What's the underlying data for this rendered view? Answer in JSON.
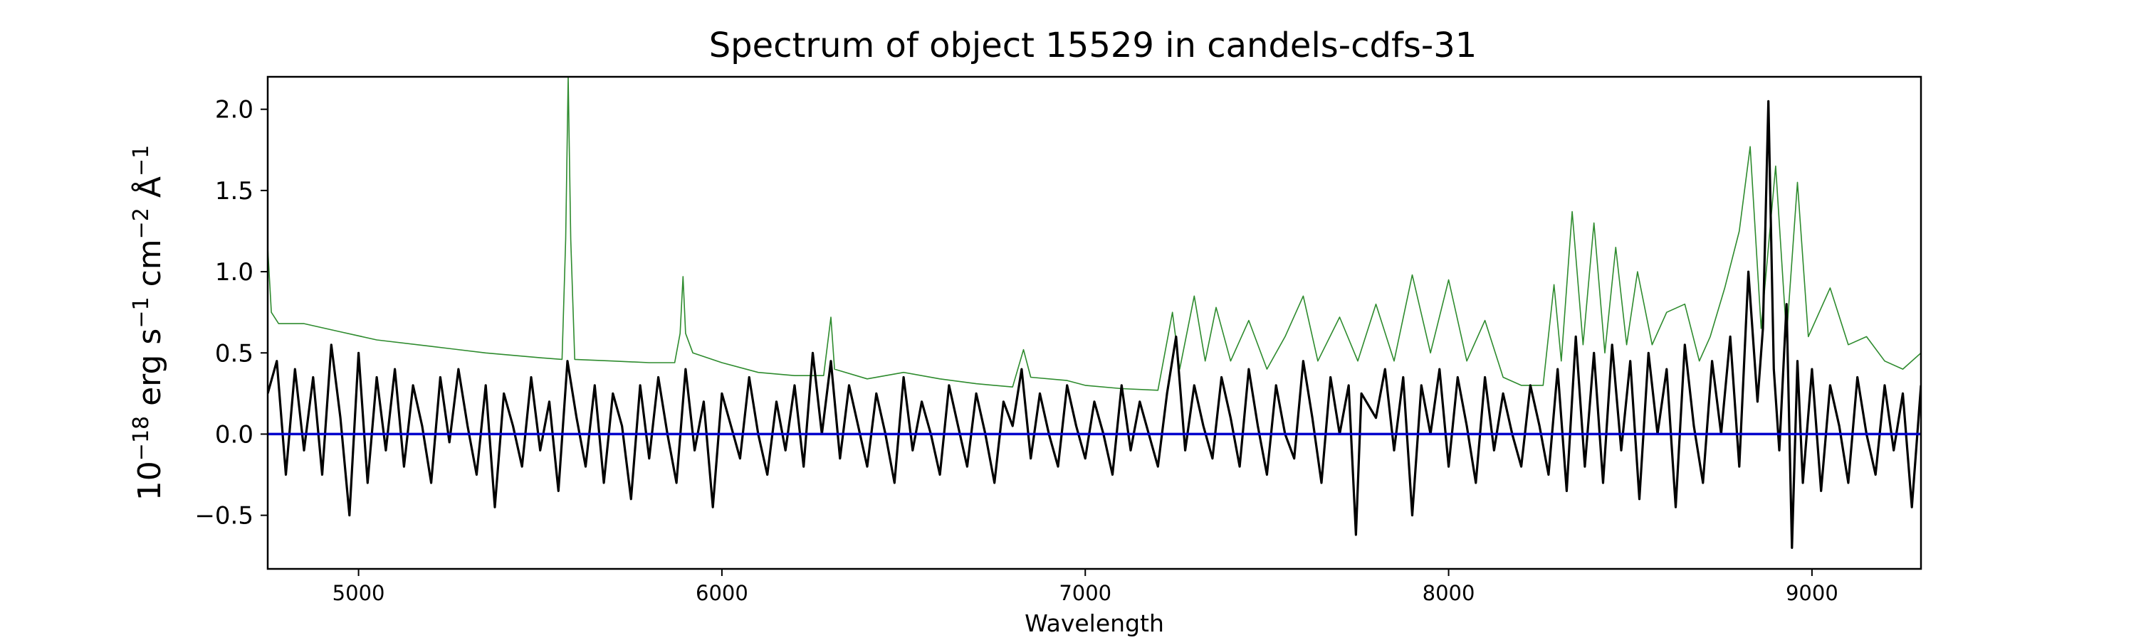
{
  "chart_data": {
    "type": "line",
    "title": "Spectrum of object 15529 in candels-cdfs-31",
    "xlabel": "Wavelength",
    "ylabel_parts": {
      "base": "10",
      "base_exp": "−18",
      "erg": " erg s",
      "s_exp": "−1",
      "cm": " cm",
      "cm_exp": "−2",
      "ang": " Å",
      "ang_exp": "−1"
    },
    "xlim": [
      4750,
      9300
    ],
    "ylim": [
      -0.83,
      2.2
    ],
    "x_ticks": [
      {
        "value": 5000,
        "label": "5000"
      },
      {
        "value": 6000,
        "label": "6000"
      },
      {
        "value": 7000,
        "label": "7000"
      },
      {
        "value": 8000,
        "label": "8000"
      },
      {
        "value": 9000,
        "label": "9000"
      }
    ],
    "y_ticks": [
      {
        "value": -0.5,
        "label": "−0.5"
      },
      {
        "value": 0.0,
        "label": "0.0"
      },
      {
        "value": 0.5,
        "label": "0.5"
      },
      {
        "value": 1.0,
        "label": "1.0"
      },
      {
        "value": 1.5,
        "label": "1.5"
      },
      {
        "value": 2.0,
        "label": "2.0"
      }
    ],
    "grid": false,
    "legend": "none",
    "series": [
      {
        "color": "#2e8b2e",
        "role": "error",
        "points": [
          [
            4750,
            1.15
          ],
          [
            4760,
            0.75
          ],
          [
            4780,
            0.68
          ],
          [
            4850,
            0.68
          ],
          [
            4950,
            0.63
          ],
          [
            5050,
            0.58
          ],
          [
            5200,
            0.54
          ],
          [
            5350,
            0.5
          ],
          [
            5500,
            0.47
          ],
          [
            5560,
            0.46
          ],
          [
            5570,
            1.2
          ],
          [
            5577,
            2.2
          ],
          [
            5584,
            1.2
          ],
          [
            5595,
            0.46
          ],
          [
            5700,
            0.45
          ],
          [
            5800,
            0.44
          ],
          [
            5870,
            0.44
          ],
          [
            5885,
            0.62
          ],
          [
            5893,
            0.97
          ],
          [
            5900,
            0.62
          ],
          [
            5920,
            0.5
          ],
          [
            6000,
            0.44
          ],
          [
            6100,
            0.38
          ],
          [
            6200,
            0.36
          ],
          [
            6280,
            0.36
          ],
          [
            6300,
            0.72
          ],
          [
            6310,
            0.4
          ],
          [
            6400,
            0.34
          ],
          [
            6500,
            0.38
          ],
          [
            6600,
            0.34
          ],
          [
            6700,
            0.31
          ],
          [
            6800,
            0.29
          ],
          [
            6830,
            0.52
          ],
          [
            6850,
            0.35
          ],
          [
            6950,
            0.33
          ],
          [
            7000,
            0.3
          ],
          [
            7100,
            0.28
          ],
          [
            7200,
            0.27
          ],
          [
            7240,
            0.75
          ],
          [
            7260,
            0.4
          ],
          [
            7300,
            0.85
          ],
          [
            7330,
            0.45
          ],
          [
            7360,
            0.78
          ],
          [
            7400,
            0.45
          ],
          [
            7450,
            0.7
          ],
          [
            7500,
            0.4
          ],
          [
            7550,
            0.6
          ],
          [
            7600,
            0.85
          ],
          [
            7640,
            0.45
          ],
          [
            7700,
            0.72
          ],
          [
            7750,
            0.45
          ],
          [
            7800,
            0.8
          ],
          [
            7850,
            0.45
          ],
          [
            7900,
            0.98
          ],
          [
            7950,
            0.5
          ],
          [
            8000,
            0.95
          ],
          [
            8050,
            0.45
          ],
          [
            8100,
            0.7
          ],
          [
            8150,
            0.35
          ],
          [
            8200,
            0.3
          ],
          [
            8260,
            0.3
          ],
          [
            8290,
            0.92
          ],
          [
            8310,
            0.45
          ],
          [
            8340,
            1.37
          ],
          [
            8370,
            0.55
          ],
          [
            8400,
            1.3
          ],
          [
            8430,
            0.5
          ],
          [
            8460,
            1.15
          ],
          [
            8490,
            0.55
          ],
          [
            8520,
            1.0
          ],
          [
            8560,
            0.55
          ],
          [
            8600,
            0.75
          ],
          [
            8650,
            0.8
          ],
          [
            8690,
            0.45
          ],
          [
            8720,
            0.6
          ],
          [
            8760,
            0.9
          ],
          [
            8800,
            1.25
          ],
          [
            8830,
            1.77
          ],
          [
            8860,
            0.65
          ],
          [
            8900,
            1.65
          ],
          [
            8930,
            0.6
          ],
          [
            8960,
            1.55
          ],
          [
            8990,
            0.6
          ],
          [
            9050,
            0.9
          ],
          [
            9100,
            0.55
          ],
          [
            9150,
            0.6
          ],
          [
            9200,
            0.45
          ],
          [
            9250,
            0.4
          ],
          [
            9300,
            0.5
          ]
        ]
      },
      {
        "color": "#000000",
        "role": "flux",
        "points": [
          [
            4750,
            0.25
          ],
          [
            4775,
            0.45
          ],
          [
            4800,
            -0.25
          ],
          [
            4825,
            0.4
          ],
          [
            4850,
            -0.1
          ],
          [
            4875,
            0.35
          ],
          [
            4900,
            -0.25
          ],
          [
            4925,
            0.55
          ],
          [
            4950,
            0.1
          ],
          [
            4975,
            -0.5
          ],
          [
            5000,
            0.5
          ],
          [
            5025,
            -0.3
          ],
          [
            5050,
            0.35
          ],
          [
            5075,
            -0.1
          ],
          [
            5100,
            0.4
          ],
          [
            5125,
            -0.2
          ],
          [
            5150,
            0.3
          ],
          [
            5175,
            0.05
          ],
          [
            5200,
            -0.3
          ],
          [
            5225,
            0.35
          ],
          [
            5250,
            -0.05
          ],
          [
            5275,
            0.4
          ],
          [
            5300,
            0.05
          ],
          [
            5325,
            -0.25
          ],
          [
            5350,
            0.3
          ],
          [
            5375,
            -0.45
          ],
          [
            5400,
            0.25
          ],
          [
            5425,
            0.05
          ],
          [
            5450,
            -0.2
          ],
          [
            5475,
            0.35
          ],
          [
            5500,
            -0.1
          ],
          [
            5525,
            0.2
          ],
          [
            5550,
            -0.35
          ],
          [
            5575,
            0.45
          ],
          [
            5600,
            0.1
          ],
          [
            5625,
            -0.2
          ],
          [
            5650,
            0.3
          ],
          [
            5675,
            -0.3
          ],
          [
            5700,
            0.25
          ],
          [
            5725,
            0.05
          ],
          [
            5750,
            -0.4
          ],
          [
            5775,
            0.3
          ],
          [
            5800,
            -0.15
          ],
          [
            5825,
            0.35
          ],
          [
            5850,
            0.0
          ],
          [
            5875,
            -0.3
          ],
          [
            5900,
            0.4
          ],
          [
            5925,
            -0.1
          ],
          [
            5950,
            0.2
          ],
          [
            5975,
            -0.45
          ],
          [
            6000,
            0.25
          ],
          [
            6025,
            0.05
          ],
          [
            6050,
            -0.15
          ],
          [
            6075,
            0.35
          ],
          [
            6100,
            0.0
          ],
          [
            6125,
            -0.25
          ],
          [
            6150,
            0.2
          ],
          [
            6175,
            -0.1
          ],
          [
            6200,
            0.3
          ],
          [
            6225,
            -0.2
          ],
          [
            6250,
            0.5
          ],
          [
            6275,
            0.0
          ],
          [
            6300,
            0.45
          ],
          [
            6325,
            -0.15
          ],
          [
            6350,
            0.3
          ],
          [
            6375,
            0.05
          ],
          [
            6400,
            -0.2
          ],
          [
            6425,
            0.25
          ],
          [
            6450,
            0.0
          ],
          [
            6475,
            -0.3
          ],
          [
            6500,
            0.35
          ],
          [
            6525,
            -0.1
          ],
          [
            6550,
            0.2
          ],
          [
            6575,
            0.0
          ],
          [
            6600,
            -0.25
          ],
          [
            6625,
            0.3
          ],
          [
            6650,
            0.05
          ],
          [
            6675,
            -0.2
          ],
          [
            6700,
            0.25
          ],
          [
            6725,
            0.0
          ],
          [
            6750,
            -0.3
          ],
          [
            6775,
            0.2
          ],
          [
            6800,
            0.05
          ],
          [
            6825,
            0.4
          ],
          [
            6850,
            -0.15
          ],
          [
            6875,
            0.25
          ],
          [
            6900,
            0.0
          ],
          [
            6925,
            -0.2
          ],
          [
            6950,
            0.3
          ],
          [
            6975,
            0.05
          ],
          [
            7000,
            -0.15
          ],
          [
            7025,
            0.2
          ],
          [
            7050,
            0.0
          ],
          [
            7075,
            -0.25
          ],
          [
            7100,
            0.3
          ],
          [
            7125,
            -0.1
          ],
          [
            7150,
            0.2
          ],
          [
            7175,
            0.0
          ],
          [
            7200,
            -0.2
          ],
          [
            7225,
            0.25
          ],
          [
            7250,
            0.6
          ],
          [
            7275,
            -0.1
          ],
          [
            7300,
            0.3
          ],
          [
            7325,
            0.05
          ],
          [
            7350,
            -0.15
          ],
          [
            7375,
            0.35
          ],
          [
            7400,
            0.1
          ],
          [
            7425,
            -0.2
          ],
          [
            7450,
            0.4
          ],
          [
            7475,
            0.05
          ],
          [
            7500,
            -0.25
          ],
          [
            7525,
            0.3
          ],
          [
            7550,
            0.0
          ],
          [
            7575,
            -0.15
          ],
          [
            7600,
            0.45
          ],
          [
            7625,
            0.1
          ],
          [
            7650,
            -0.3
          ],
          [
            7675,
            0.35
          ],
          [
            7700,
            0.0
          ],
          [
            7725,
            0.3
          ],
          [
            7745,
            -0.62
          ],
          [
            7760,
            0.25
          ],
          [
            7800,
            0.1
          ],
          [
            7825,
            0.4
          ],
          [
            7850,
            -0.1
          ],
          [
            7875,
            0.35
          ],
          [
            7900,
            -0.5
          ],
          [
            7925,
            0.3
          ],
          [
            7950,
            0.0
          ],
          [
            7975,
            0.4
          ],
          [
            8000,
            -0.2
          ],
          [
            8025,
            0.35
          ],
          [
            8050,
            0.05
          ],
          [
            8075,
            -0.3
          ],
          [
            8100,
            0.35
          ],
          [
            8125,
            -0.1
          ],
          [
            8150,
            0.25
          ],
          [
            8175,
            0.0
          ],
          [
            8200,
            -0.2
          ],
          [
            8225,
            0.3
          ],
          [
            8250,
            0.05
          ],
          [
            8275,
            -0.25
          ],
          [
            8300,
            0.4
          ],
          [
            8325,
            -0.35
          ],
          [
            8350,
            0.6
          ],
          [
            8375,
            -0.2
          ],
          [
            8400,
            0.5
          ],
          [
            8425,
            -0.3
          ],
          [
            8450,
            0.55
          ],
          [
            8475,
            -0.1
          ],
          [
            8500,
            0.45
          ],
          [
            8525,
            -0.4
          ],
          [
            8550,
            0.5
          ],
          [
            8575,
            0.0
          ],
          [
            8600,
            0.4
          ],
          [
            8625,
            -0.45
          ],
          [
            8650,
            0.55
          ],
          [
            8675,
            0.05
          ],
          [
            8700,
            -0.3
          ],
          [
            8725,
            0.45
          ],
          [
            8750,
            0.0
          ],
          [
            8775,
            0.6
          ],
          [
            8800,
            -0.2
          ],
          [
            8825,
            1.0
          ],
          [
            8850,
            0.2
          ],
          [
            8865,
            0.65
          ],
          [
            8880,
            2.05
          ],
          [
            8895,
            0.4
          ],
          [
            8910,
            -0.1
          ],
          [
            8930,
            0.8
          ],
          [
            8945,
            -0.7
          ],
          [
            8960,
            0.45
          ],
          [
            8975,
            -0.3
          ],
          [
            9000,
            0.4
          ],
          [
            9025,
            -0.35
          ],
          [
            9050,
            0.3
          ],
          [
            9075,
            0.05
          ],
          [
            9100,
            -0.3
          ],
          [
            9125,
            0.35
          ],
          [
            9150,
            0.0
          ],
          [
            9175,
            -0.25
          ],
          [
            9200,
            0.3
          ],
          [
            9225,
            -0.1
          ],
          [
            9250,
            0.25
          ],
          [
            9275,
            -0.45
          ],
          [
            9300,
            0.3
          ]
        ]
      },
      {
        "color": "#0000cc",
        "role": "zero",
        "points": [
          [
            4750,
            0.0
          ],
          [
            9300,
            0.0
          ]
        ]
      }
    ]
  }
}
